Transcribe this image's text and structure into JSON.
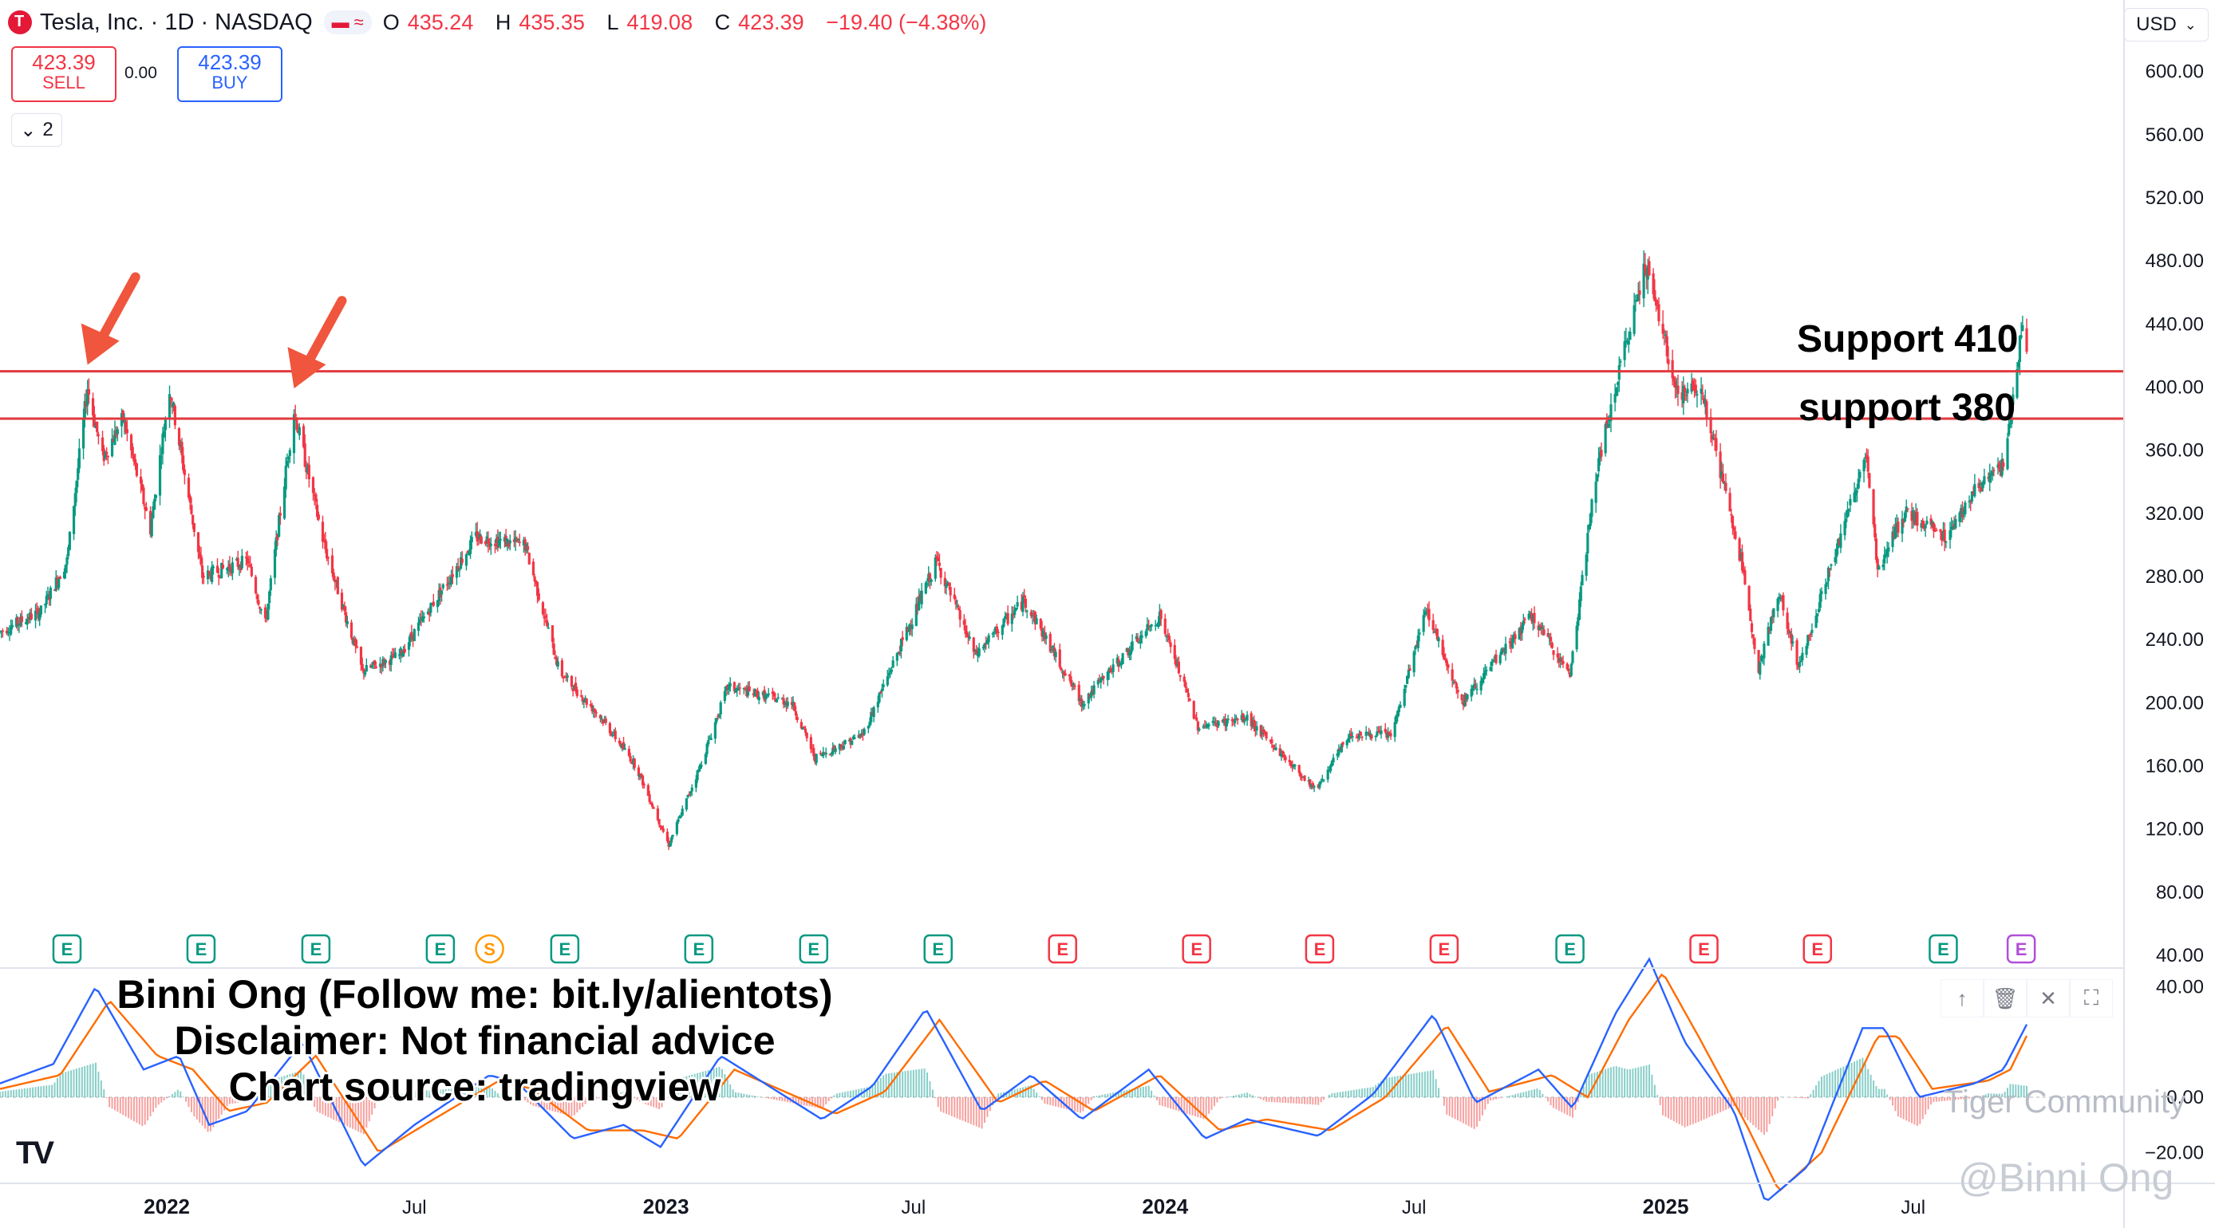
{
  "header": {
    "symbol": "Tesla, Inc. · 1D · NASDAQ",
    "ohlc": {
      "o_label": "O",
      "o_value": "435.24",
      "h_label": "H",
      "h_value": "435.35",
      "l_label": "L",
      "l_value": "419.08",
      "c_label": "C",
      "c_value": "423.39",
      "change": "−19.40 (−4.38%)"
    }
  },
  "trade": {
    "sell_price": "423.39",
    "sell_label": "SELL",
    "spread": "0.00",
    "buy_price": "423.39",
    "buy_label": "BUY"
  },
  "layers_count": "2",
  "currency": "USD",
  "overlay_text": {
    "line1": "Binni Ong (Follow me: bit.ly/alientots)",
    "line2": "Disclaimer: Not financial advice",
    "line3": "Chart source: tradingview"
  },
  "annotations": {
    "support_410": "Support 410",
    "support_380": "support 380"
  },
  "watermarks": {
    "community": "Tiger Community",
    "handle": "@Binni Ong"
  },
  "colors": {
    "up": "#089981",
    "down": "#f23645",
    "macd": "#2962ff",
    "signal": "#ff6d00",
    "support_line": "#e03a3e"
  },
  "chart_data": {
    "type": "candlestick",
    "x_tick_labels": [
      "2022",
      "Jul",
      "2023",
      "Jul",
      "2024",
      "Jul",
      "2025",
      "Jul"
    ],
    "x_tick_dates": [
      "2022-01-01",
      "2022-07-01",
      "2023-01-01",
      "2023-07-01",
      "2024-01-01",
      "2024-07-01",
      "2025-01-01",
      "2025-07-01"
    ],
    "x_range": [
      "2021-09-01",
      "2025-09-22"
    ],
    "y_range": [
      40,
      620
    ],
    "y_ticks": [
      600,
      560,
      520,
      480,
      440,
      400,
      360,
      320,
      280,
      240,
      200,
      160,
      120,
      80,
      40
    ],
    "y_tick_labels": [
      "600.00",
      "560.00",
      "520.00",
      "480.00",
      "440.00",
      "400.00",
      "360.00",
      "320.00",
      "280.00",
      "240.00",
      "200.00",
      "160.00",
      "120.00",
      "80.00",
      "40.00"
    ],
    "price_path": [
      [
        "2021-09-01",
        245
      ],
      [
        "2021-10-01",
        258
      ],
      [
        "2021-10-20",
        290
      ],
      [
        "2021-11-04",
        400
      ],
      [
        "2021-11-15",
        355
      ],
      [
        "2021-11-30",
        380
      ],
      [
        "2021-12-20",
        310
      ],
      [
        "2022-01-03",
        400
      ],
      [
        "2022-01-27",
        280
      ],
      [
        "2022-03-01",
        290
      ],
      [
        "2022-03-14",
        250
      ],
      [
        "2022-04-04",
        385
      ],
      [
        "2022-04-26",
        300
      ],
      [
        "2022-05-24",
        220
      ],
      [
        "2022-06-20",
        230
      ],
      [
        "2022-08-15",
        305
      ],
      [
        "2022-09-20",
        300
      ],
      [
        "2022-10-15",
        220
      ],
      [
        "2022-11-15",
        190
      ],
      [
        "2022-12-10",
        160
      ],
      [
        "2023-01-03",
        110
      ],
      [
        "2023-01-26",
        160
      ],
      [
        "2023-02-15",
        210
      ],
      [
        "2023-04-03",
        200
      ],
      [
        "2023-04-20",
        165
      ],
      [
        "2023-05-25",
        180
      ],
      [
        "2023-07-18",
        290
      ],
      [
        "2023-08-15",
        230
      ],
      [
        "2023-09-20",
        265
      ],
      [
        "2023-11-01",
        200
      ],
      [
        "2023-12-28",
        255
      ],
      [
        "2024-01-25",
        185
      ],
      [
        "2024-03-01",
        190
      ],
      [
        "2024-04-20",
        145
      ],
      [
        "2024-05-15",
        180
      ],
      [
        "2024-06-15",
        180
      ],
      [
        "2024-07-10",
        260
      ],
      [
        "2024-08-05",
        200
      ],
      [
        "2024-09-25",
        255
      ],
      [
        "2024-10-23",
        218
      ],
      [
        "2024-11-11",
        345
      ],
      [
        "2024-12-17",
        480
      ],
      [
        "2025-01-10",
        395
      ],
      [
        "2025-01-27",
        400
      ],
      [
        "2025-02-25",
        290
      ],
      [
        "2025-03-10",
        222
      ],
      [
        "2025-03-25",
        270
      ],
      [
        "2025-04-08",
        222
      ],
      [
        "2025-05-28",
        358
      ],
      [
        "2025-06-05",
        285
      ],
      [
        "2025-06-25",
        320
      ],
      [
        "2025-07-25",
        305
      ],
      [
        "2025-08-15",
        335
      ],
      [
        "2025-09-05",
        350
      ],
      [
        "2025-09-15",
        410
      ],
      [
        "2025-09-18",
        438
      ],
      [
        "2025-09-22",
        423.39
      ]
    ],
    "horizontal_levels": [
      {
        "value": 410.01,
        "label": "410.01"
      },
      {
        "value": 380.04,
        "label": "380.04"
      }
    ],
    "last_price": {
      "value": 423.39,
      "label": "423.39"
    },
    "arrows_at": [
      "2021-11-04",
      "2022-04-04"
    ],
    "events": [
      {
        "date": "2021-10-20",
        "type": "E"
      },
      {
        "date": "2022-01-26",
        "type": "E"
      },
      {
        "date": "2022-04-20",
        "type": "E"
      },
      {
        "date": "2022-07-20",
        "type": "E"
      },
      {
        "date": "2022-08-25",
        "type": "S"
      },
      {
        "date": "2022-10-19",
        "type": "E"
      },
      {
        "date": "2023-01-25",
        "type": "E"
      },
      {
        "date": "2023-04-19",
        "type": "E"
      },
      {
        "date": "2023-07-19",
        "type": "E"
      },
      {
        "date": "2023-10-18",
        "type": "E",
        "negative": true
      },
      {
        "date": "2024-01-24",
        "type": "E",
        "negative": true
      },
      {
        "date": "2024-04-23",
        "type": "E",
        "negative": true
      },
      {
        "date": "2024-07-23",
        "type": "E",
        "negative": true
      },
      {
        "date": "2024-10-23",
        "type": "E"
      },
      {
        "date": "2025-01-29",
        "type": "E",
        "negative": true
      },
      {
        "date": "2025-04-22",
        "type": "E",
        "negative": true
      },
      {
        "date": "2025-07-23",
        "type": "E"
      },
      {
        "date": "2025-09-18",
        "type": "E",
        "upcoming": true
      }
    ],
    "macd_panel": {
      "y_ticks": [
        40,
        0,
        -20
      ],
      "y_tick_labels": [
        "40.00",
        "0.00",
        "−20.00"
      ],
      "y_range": [
        -30,
        45
      ],
      "macd_last": "26.34",
      "signal_last": "22.22",
      "hist_last": "4.12",
      "macd_path": [
        [
          "2021-09-01",
          5
        ],
        [
          "2021-10-10",
          12
        ],
        [
          "2021-11-10",
          40
        ],
        [
          "2021-12-15",
          10
        ],
        [
          "2022-01-10",
          15
        ],
        [
          "2022-02-01",
          -10
        ],
        [
          "2022-03-01",
          -5
        ],
        [
          "2022-04-10",
          20
        ],
        [
          "2022-05-25",
          -25
        ],
        [
          "2022-07-01",
          -10
        ],
        [
          "2022-08-25",
          8
        ],
        [
          "2022-09-15",
          5
        ],
        [
          "2022-10-25",
          -15
        ],
        [
          "2022-12-01",
          -10
        ],
        [
          "2022-12-28",
          -18
        ],
        [
          "2023-02-10",
          15
        ],
        [
          "2023-04-25",
          -8
        ],
        [
          "2023-06-01",
          4
        ],
        [
          "2023-07-10",
          32
        ],
        [
          "2023-08-20",
          -5
        ],
        [
          "2023-09-25",
          8
        ],
        [
          "2023-11-01",
          -8
        ],
        [
          "2023-12-20",
          10
        ],
        [
          "2024-01-30",
          -15
        ],
        [
          "2024-03-01",
          -8
        ],
        [
          "2024-04-22",
          -14
        ],
        [
          "2024-06-01",
          1
        ],
        [
          "2024-07-15",
          30
        ],
        [
          "2024-08-15",
          -2
        ],
        [
          "2024-09-30",
          10
        ],
        [
          "2024-10-25",
          -4
        ],
        [
          "2024-11-25",
          30
        ],
        [
          "2024-12-20",
          50
        ],
        [
          "2025-01-15",
          20
        ],
        [
          "2025-02-20",
          -5
        ],
        [
          "2025-03-15",
          -38
        ],
        [
          "2025-04-15",
          -25
        ],
        [
          "2025-05-25",
          25
        ],
        [
          "2025-06-10",
          25
        ],
        [
          "2025-07-05",
          0
        ],
        [
          "2025-08-15",
          5
        ],
        [
          "2025-09-05",
          10
        ],
        [
          "2025-09-22",
          26.34
        ]
      ],
      "signal_path": [
        [
          "2021-09-01",
          3
        ],
        [
          "2021-10-15",
          8
        ],
        [
          "2021-11-20",
          35
        ],
        [
          "2021-12-25",
          15
        ],
        [
          "2022-01-20",
          10
        ],
        [
          "2022-02-15",
          -5
        ],
        [
          "2022-03-15",
          -2
        ],
        [
          "2022-04-20",
          15
        ],
        [
          "2022-06-05",
          -20
        ],
        [
          "2022-07-15",
          -8
        ],
        [
          "2022-09-01",
          6
        ],
        [
          "2022-09-25",
          3
        ],
        [
          "2022-11-05",
          -12
        ],
        [
          "2022-12-15",
          -12
        ],
        [
          "2023-01-10",
          -15
        ],
        [
          "2023-02-20",
          10
        ],
        [
          "2023-05-05",
          -6
        ],
        [
          "2023-06-10",
          2
        ],
        [
          "2023-07-20",
          28
        ],
        [
          "2023-09-01",
          -2
        ],
        [
          "2023-10-05",
          6
        ],
        [
          "2023-11-10",
          -5
        ],
        [
          "2023-12-28",
          8
        ],
        [
          "2024-02-10",
          -12
        ],
        [
          "2024-03-15",
          -8
        ],
        [
          "2024-05-01",
          -12
        ],
        [
          "2024-06-10",
          0
        ],
        [
          "2024-07-25",
          26
        ],
        [
          "2024-08-25",
          2
        ],
        [
          "2024-10-10",
          8
        ],
        [
          "2024-11-05",
          0
        ],
        [
          "2024-12-05",
          28
        ],
        [
          "2024-12-30",
          45
        ],
        [
          "2025-01-25",
          22
        ],
        [
          "2025-03-01",
          -10
        ],
        [
          "2025-03-25",
          -34
        ],
        [
          "2025-04-25",
          -20
        ],
        [
          "2025-06-05",
          22
        ],
        [
          "2025-06-20",
          22
        ],
        [
          "2025-07-15",
          3
        ],
        [
          "2025-08-25",
          6
        ],
        [
          "2025-09-10",
          10
        ],
        [
          "2025-09-22",
          22.22
        ]
      ]
    }
  }
}
